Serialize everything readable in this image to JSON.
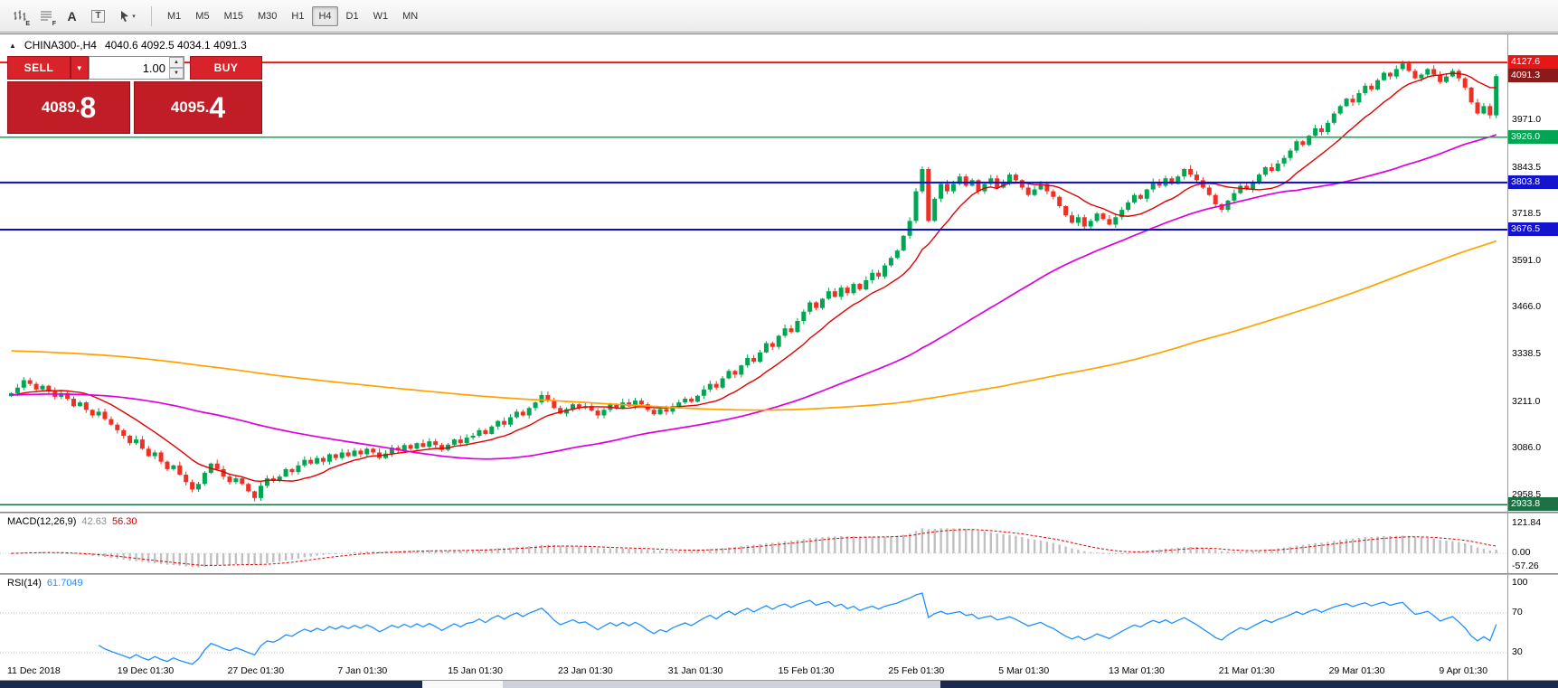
{
  "toolbar": {
    "icon_letters": {
      "e": "E",
      "f": "F",
      "a": "A",
      "t": "T"
    },
    "timeframes": [
      {
        "label": "M1",
        "active": false
      },
      {
        "label": "M5",
        "active": false
      },
      {
        "label": "M15",
        "active": false
      },
      {
        "label": "M30",
        "active": false
      },
      {
        "label": "H1",
        "active": false
      },
      {
        "label": "H4",
        "active": true
      },
      {
        "label": "D1",
        "active": false
      },
      {
        "label": "W1",
        "active": false
      },
      {
        "label": "MN",
        "active": false
      }
    ]
  },
  "chart": {
    "title_symbol": "CHINA300-,H4",
    "title_ohlc": "4040.6 4092.5 4034.1 4091.3",
    "axis_ticks": [
      "3971.0",
      "3843.5",
      "3718.5",
      "3591.0",
      "3466.0",
      "3338.5",
      "3211.0",
      "3086.0",
      "2958.5"
    ],
    "axis_badges": [
      {
        "label": "4127.6",
        "bg": "#e81717"
      },
      {
        "label": "4091.3",
        "bg": "#8b1a1a"
      },
      {
        "label": "3926.0",
        "bg": "#00a651"
      },
      {
        "label": "3803.8",
        "bg": "#1414cc"
      },
      {
        "label": "3676.5",
        "bg": "#1414cc"
      },
      {
        "label": "2933.8",
        "bg": "#1e7145"
      }
    ]
  },
  "trade": {
    "sell_label": "SELL",
    "buy_label": "BUY",
    "volume": "1.00",
    "bid": "4089.8",
    "ask": "4095.4",
    "bid_main": "4089.",
    "bid_big": "8",
    "ask_main": "4095.",
    "ask_big": "4"
  },
  "macd": {
    "name": "MACD(12,26,9)",
    "value1": "42.63",
    "value2": "56.30",
    "axis": [
      "121.84",
      "0.00",
      "-57.26"
    ]
  },
  "rsi": {
    "name": "RSI(14)",
    "value": "61.7049",
    "axis": [
      "100",
      "70",
      "30"
    ]
  },
  "chart_data": {
    "type": "candlestick",
    "symbol": "CHINA300-",
    "timeframe": "H4",
    "ohlc_header": {
      "open": 4040.6,
      "high": 4092.5,
      "low": 4034.1,
      "close": 4091.3
    },
    "bid_price": 4091.3,
    "price_axis_ticks": [
      3971.0,
      3843.5,
      3718.5,
      3591.0,
      3466.0,
      3338.5,
      3211.0,
      3086.0,
      2958.5
    ],
    "price_range_shown": [
      2915,
      4150
    ],
    "horizontal_levels": [
      {
        "price": 4127.6,
        "color": "#e81717",
        "width": 2
      },
      {
        "price": 3926.0,
        "color": "#00b050",
        "width": 1.5
      },
      {
        "price": 3803.8,
        "color": "#0a0ad2",
        "width": 2
      },
      {
        "price": 3676.5,
        "color": "#0a0ad2",
        "width": 2
      },
      {
        "price": 2933.8,
        "color": "#1e7145",
        "width": 1.5
      }
    ],
    "x_axis_labels": [
      "11 Dec 2018",
      "19 Dec 01:30",
      "27 Dec 01:30",
      "7 Jan 01:30",
      "15 Jan 01:30",
      "23 Jan 01:30",
      "31 Jan 01:30",
      "15 Feb 01:30",
      "25 Feb 01:30",
      "5 Mar 01:30",
      "13 Mar 01:30",
      "21 Mar 01:30",
      "29 Mar 01:30",
      "9 Apr 01:30"
    ],
    "candle_colors": {
      "up": "#00a651",
      "down": "#ee3124"
    },
    "moving_average_colors": [
      "#e00000",
      "#dd00dd",
      "#ffa200"
    ],
    "indicators": [
      {
        "name": "MACD",
        "params": "12,26,9",
        "values": [
          42.63,
          56.3
        ],
        "axis": [
          121.84,
          0.0,
          -57.26
        ],
        "histogram_color": "#c0c0c0",
        "signal_color": "#e00000"
      },
      {
        "name": "RSI",
        "params": "14",
        "value": 61.7049,
        "axis": [
          100,
          70,
          30
        ],
        "line_color": "#1e90ff"
      }
    ],
    "approx_closes": [
      3235,
      3250,
      3270,
      3260,
      3245,
      3255,
      3240,
      3225,
      3235,
      3220,
      3200,
      3210,
      3190,
      3175,
      3185,
      3165,
      3150,
      3135,
      3120,
      3100,
      3110,
      3085,
      3065,
      3075,
      3050,
      3030,
      3040,
      3015,
      2995,
      2975,
      2990,
      3020,
      3045,
      3030,
      3010,
      2995,
      3005,
      2990,
      2970,
      2952,
      2985,
      3005,
      2998,
      3010,
      3030,
      3022,
      3040,
      3055,
      3045,
      3060,
      3050,
      3070,
      3060,
      3075,
      3065,
      3080,
      3070,
      3085,
      3075,
      3060,
      3072,
      3088,
      3080,
      3095,
      3085,
      3100,
      3090,
      3105,
      3095,
      3082,
      3096,
      3110,
      3100,
      3115,
      3120,
      3135,
      3125,
      3145,
      3160,
      3150,
      3170,
      3185,
      3175,
      3195,
      3210,
      3230,
      3215,
      3195,
      3180,
      3192,
      3205,
      3195,
      3200,
      3188,
      3175,
      3190,
      3205,
      3195,
      3210,
      3200,
      3215,
      3205,
      3190,
      3178,
      3192,
      3185,
      3200,
      3210,
      3220,
      3212,
      3228,
      3245,
      3260,
      3250,
      3275,
      3295,
      3285,
      3310,
      3330,
      3320,
      3345,
      3370,
      3360,
      3390,
      3410,
      3400,
      3430,
      3455,
      3480,
      3465,
      3490,
      3510,
      3495,
      3520,
      3505,
      3530,
      3515,
      3540,
      3560,
      3550,
      3580,
      3600,
      3620,
      3660,
      3700,
      3780,
      3840,
      3700,
      3760,
      3800,
      3780,
      3800,
      3820,
      3795,
      3810,
      3780,
      3800,
      3815,
      3790,
      3805,
      3825,
      3810,
      3790,
      3770,
      3785,
      3800,
      3780,
      3765,
      3740,
      3715,
      3695,
      3710,
      3685,
      3700,
      3720,
      3705,
      3690,
      3710,
      3730,
      3750,
      3770,
      3760,
      3785,
      3805,
      3795,
      3815,
      3800,
      3820,
      3840,
      3825,
      3810,
      3790,
      3770,
      3745,
      3730,
      3755,
      3775,
      3795,
      3785,
      3805,
      3825,
      3845,
      3835,
      3855,
      3870,
      3890,
      3915,
      3905,
      3930,
      3950,
      3940,
      3965,
      3990,
      4010,
      4030,
      4020,
      4045,
      4065,
      4055,
      4080,
      4100,
      4090,
      4110,
      4125,
      4105,
      4085,
      4095,
      4110,
      4095,
      4075,
      4090,
      4105,
      4085,
      4060,
      4020,
      3990,
      4010,
      3985,
      4091
    ]
  }
}
